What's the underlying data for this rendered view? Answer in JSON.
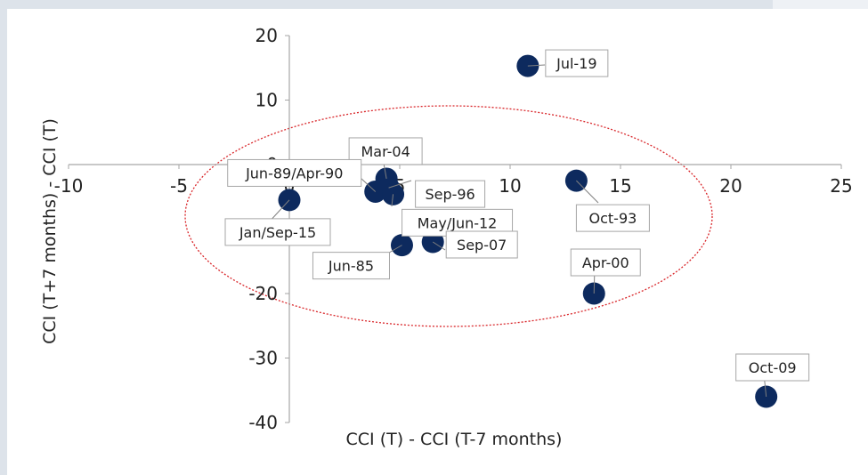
{
  "chart_data": {
    "type": "scatter",
    "title": "",
    "xlabel": "CCI (T) - CCI (T-7 months)",
    "ylabel": "CCI (T+7 months) - CCI (T)",
    "xlim": [
      -10,
      25
    ],
    "ylim": [
      -40,
      20
    ],
    "xticks": [
      -10,
      -5,
      0,
      5,
      10,
      15,
      20,
      25
    ],
    "yticks": [
      20,
      10,
      0,
      -10,
      -20,
      -30,
      -40
    ],
    "grid": false,
    "point_color": "#0d2a5e",
    "ellipse_color": "#d9262a",
    "points": [
      {
        "label": "Jul-19",
        "x": 10.8,
        "y": 15.3
      },
      {
        "label": "Mar-04",
        "x": 4.4,
        "y": -2.2
      },
      {
        "label": "Jun-89/Apr-90",
        "x": 3.9,
        "y": -4.2
      },
      {
        "label": "Sep-96",
        "x": 4.5,
        "y": -3.6
      },
      {
        "label": "May/Jun-12",
        "x": 4.7,
        "y": -4.6
      },
      {
        "label": "Jan/Sep-15",
        "x": 0.0,
        "y": -5.5
      },
      {
        "label": "Jun-85",
        "x": 5.1,
        "y": -12.5
      },
      {
        "label": "Sep-07",
        "x": 6.5,
        "y": -12.0
      },
      {
        "label": "Oct-93",
        "x": 13.0,
        "y": -2.5
      },
      {
        "label": "Apr-00",
        "x": 13.8,
        "y": -20.0
      },
      {
        "label": "Oct-09",
        "x": 21.6,
        "y": -36.0
      }
    ]
  }
}
